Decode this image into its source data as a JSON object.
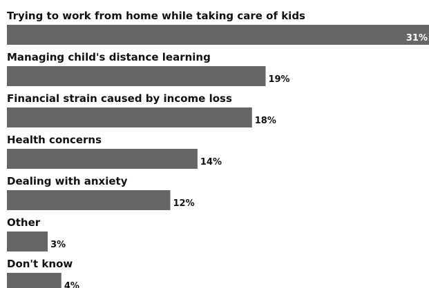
{
  "chart_data": {
    "type": "bar",
    "orientation": "horizontal",
    "categories": [
      "Trying to work from home while taking care of kids",
      "Managing child's distance learning",
      "Financial strain caused by income loss",
      "Health concerns",
      "Dealing with anxiety",
      "Other",
      "Don't know"
    ],
    "values": [
      31,
      19,
      18,
      14,
      12,
      3,
      4
    ],
    "value_labels": [
      "31%",
      "19%",
      "18%",
      "14%",
      "12%",
      "3%",
      "4%"
    ],
    "unit": "%",
    "xlim": [
      0,
      31
    ],
    "grid": false,
    "legend": "none"
  },
  "colors": {
    "bar": "#666666",
    "label": "#111111",
    "value_label": "#111111",
    "value_label_inside": "#ffffff"
  }
}
